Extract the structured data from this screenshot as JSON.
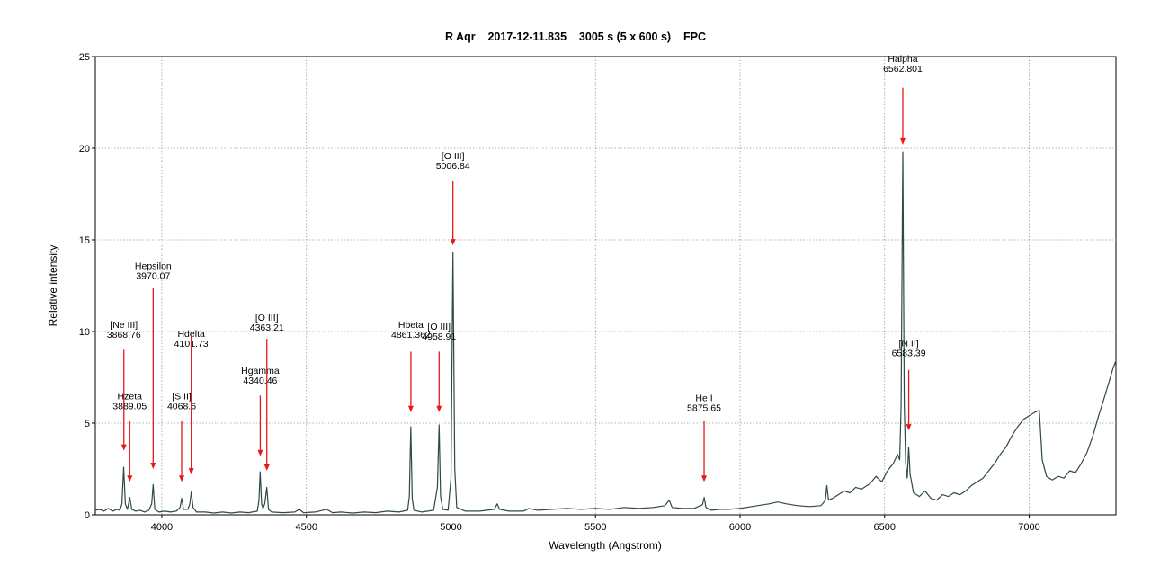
{
  "chart_data": {
    "type": "line",
    "title": "R Aqr    2017-12-11.835    3005 s (5 x 600 s)    FPC",
    "xlabel": "Wavelength (Angstrom)",
    "ylabel": "Relative intensity",
    "xlim": [
      3770,
      7300
    ],
    "ylim": [
      0,
      25
    ],
    "x_ticks": [
      4000,
      4500,
      5000,
      5500,
      6000,
      6500,
      7000
    ],
    "y_ticks": [
      0,
      5,
      10,
      15,
      20,
      25
    ],
    "grid": true,
    "line_color": "#2e4a44",
    "annotation_color": "#e81818",
    "series": [
      {
        "points": [
          [
            3770,
            0.25
          ],
          [
            3785,
            0.3
          ],
          [
            3800,
            0.2
          ],
          [
            3815,
            0.35
          ],
          [
            3830,
            0.2
          ],
          [
            3845,
            0.3
          ],
          [
            3855,
            0.25
          ],
          [
            3862,
            0.6
          ],
          [
            3868,
            2.6
          ],
          [
            3874,
            0.6
          ],
          [
            3881,
            0.3
          ],
          [
            3889,
            0.95
          ],
          [
            3896,
            0.3
          ],
          [
            3910,
            0.2
          ],
          [
            3925,
            0.25
          ],
          [
            3940,
            0.15
          ],
          [
            3955,
            0.25
          ],
          [
            3965,
            0.6
          ],
          [
            3970,
            1.65
          ],
          [
            3976,
            0.3
          ],
          [
            3990,
            0.15
          ],
          [
            4010,
            0.2
          ],
          [
            4030,
            0.15
          ],
          [
            4050,
            0.2
          ],
          [
            4063,
            0.4
          ],
          [
            4069,
            0.9
          ],
          [
            4075,
            0.3
          ],
          [
            4090,
            0.3
          ],
          [
            4097,
            0.6
          ],
          [
            4102,
            1.25
          ],
          [
            4108,
            0.4
          ],
          [
            4120,
            0.15
          ],
          [
            4150,
            0.15
          ],
          [
            4180,
            0.1
          ],
          [
            4210,
            0.15
          ],
          [
            4240,
            0.1
          ],
          [
            4270,
            0.15
          ],
          [
            4300,
            0.12
          ],
          [
            4330,
            0.2
          ],
          [
            4336,
            0.8
          ],
          [
            4340,
            2.35
          ],
          [
            4345,
            0.6
          ],
          [
            4350,
            0.35
          ],
          [
            4356,
            0.6
          ],
          [
            4363,
            1.5
          ],
          [
            4369,
            0.3
          ],
          [
            4380,
            0.15
          ],
          [
            4420,
            0.12
          ],
          [
            4460,
            0.15
          ],
          [
            4475,
            0.3
          ],
          [
            4490,
            0.12
          ],
          [
            4530,
            0.15
          ],
          [
            4570,
            0.3
          ],
          [
            4590,
            0.12
          ],
          [
            4620,
            0.15
          ],
          [
            4660,
            0.1
          ],
          [
            4700,
            0.15
          ],
          [
            4740,
            0.12
          ],
          [
            4780,
            0.2
          ],
          [
            4820,
            0.15
          ],
          [
            4850,
            0.25
          ],
          [
            4856,
            1.0
          ],
          [
            4861,
            4.8
          ],
          [
            4866,
            0.9
          ],
          [
            4872,
            0.25
          ],
          [
            4900,
            0.15
          ],
          [
            4940,
            0.25
          ],
          [
            4953,
            1.5
          ],
          [
            4959,
            4.9
          ],
          [
            4964,
            1.0
          ],
          [
            4972,
            0.3
          ],
          [
            4990,
            0.25
          ],
          [
            5000,
            2.0
          ],
          [
            5007,
            14.3
          ],
          [
            5013,
            2.5
          ],
          [
            5020,
            0.4
          ],
          [
            5050,
            0.2
          ],
          [
            5100,
            0.2
          ],
          [
            5150,
            0.3
          ],
          [
            5160,
            0.6
          ],
          [
            5168,
            0.3
          ],
          [
            5200,
            0.2
          ],
          [
            5250,
            0.2
          ],
          [
            5270,
            0.35
          ],
          [
            5300,
            0.25
          ],
          [
            5350,
            0.3
          ],
          [
            5400,
            0.35
          ],
          [
            5450,
            0.3
          ],
          [
            5500,
            0.35
          ],
          [
            5550,
            0.3
          ],
          [
            5600,
            0.4
          ],
          [
            5650,
            0.35
          ],
          [
            5700,
            0.4
          ],
          [
            5740,
            0.5
          ],
          [
            5755,
            0.8
          ],
          [
            5765,
            0.4
          ],
          [
            5800,
            0.35
          ],
          [
            5840,
            0.35
          ],
          [
            5870,
            0.55
          ],
          [
            5876,
            0.95
          ],
          [
            5882,
            0.4
          ],
          [
            5900,
            0.25
          ],
          [
            5930,
            0.3
          ],
          [
            5960,
            0.3
          ],
          [
            6000,
            0.35
          ],
          [
            6040,
            0.45
          ],
          [
            6080,
            0.55
          ],
          [
            6100,
            0.6
          ],
          [
            6130,
            0.7
          ],
          [
            6160,
            0.6
          ],
          [
            6200,
            0.5
          ],
          [
            6240,
            0.45
          ],
          [
            6280,
            0.5
          ],
          [
            6295,
            0.8
          ],
          [
            6300,
            1.6
          ],
          [
            6306,
            0.8
          ],
          [
            6320,
            0.9
          ],
          [
            6340,
            1.1
          ],
          [
            6360,
            1.3
          ],
          [
            6380,
            1.2
          ],
          [
            6400,
            1.5
          ],
          [
            6420,
            1.4
          ],
          [
            6450,
            1.7
          ],
          [
            6470,
            2.1
          ],
          [
            6490,
            1.8
          ],
          [
            6510,
            2.4
          ],
          [
            6530,
            2.8
          ],
          [
            6545,
            3.3
          ],
          [
            6552,
            3.0
          ],
          [
            6557,
            6.0
          ],
          [
            6563,
            19.8
          ],
          [
            6568,
            6.0
          ],
          [
            6573,
            2.8
          ],
          [
            6578,
            2.0
          ],
          [
            6583,
            3.7
          ],
          [
            6588,
            2.2
          ],
          [
            6600,
            1.2
          ],
          [
            6620,
            1.0
          ],
          [
            6640,
            1.3
          ],
          [
            6660,
            0.9
          ],
          [
            6680,
            0.8
          ],
          [
            6700,
            1.1
          ],
          [
            6720,
            1.0
          ],
          [
            6740,
            1.2
          ],
          [
            6760,
            1.1
          ],
          [
            6780,
            1.3
          ],
          [
            6800,
            1.6
          ],
          [
            6820,
            1.8
          ],
          [
            6840,
            2.0
          ],
          [
            6860,
            2.4
          ],
          [
            6880,
            2.8
          ],
          [
            6900,
            3.3
          ],
          [
            6920,
            3.7
          ],
          [
            6940,
            4.3
          ],
          [
            6960,
            4.8
          ],
          [
            6980,
            5.2
          ],
          [
            7000,
            5.4
          ],
          [
            7020,
            5.6
          ],
          [
            7035,
            5.7
          ],
          [
            7045,
            3.0
          ],
          [
            7060,
            2.1
          ],
          [
            7080,
            1.9
          ],
          [
            7100,
            2.1
          ],
          [
            7120,
            2.0
          ],
          [
            7140,
            2.4
          ],
          [
            7160,
            2.3
          ],
          [
            7180,
            2.8
          ],
          [
            7200,
            3.4
          ],
          [
            7220,
            4.3
          ],
          [
            7240,
            5.4
          ],
          [
            7260,
            6.4
          ],
          [
            7275,
            7.2
          ],
          [
            7290,
            8.0
          ],
          [
            7300,
            8.4
          ]
        ]
      }
    ],
    "annotations": [
      {
        "name": "[Ne III]",
        "value": "3868.76",
        "x": 3868.76,
        "label_y": 10.2,
        "arrow_from": 9.0,
        "arrow_to": 3.5
      },
      {
        "name": "Hzeta",
        "value": "3889.05",
        "x": 3889.05,
        "label_y": 6.3,
        "arrow_from": 5.1,
        "arrow_to": 1.8
      },
      {
        "name": "Hepsilon",
        "value": "3970.07",
        "x": 3970.07,
        "label_y": 13.4,
        "arrow_from": 12.4,
        "arrow_to": 2.5
      },
      {
        "name": "[S II]",
        "value": "4068.6",
        "x": 4068.6,
        "label_y": 6.3,
        "arrow_from": 5.1,
        "arrow_to": 1.8
      },
      {
        "name": "Hdelta",
        "value": "4101.73",
        "x": 4101.73,
        "label_y": 9.7,
        "arrow_from": 9.8,
        "arrow_to": 2.2
      },
      {
        "name": "Hgamma",
        "value": "4340.46",
        "x": 4340.46,
        "label_y": 7.7,
        "arrow_from": 6.5,
        "arrow_to": 3.2
      },
      {
        "name": "[O III]",
        "value": "4363.21",
        "x": 4363.21,
        "label_y": 10.6,
        "arrow_from": 9.6,
        "arrow_to": 2.4
      },
      {
        "name": "Hbeta",
        "value": "4861.362",
        "x": 4861.362,
        "label_y": 10.2,
        "arrow_from": 8.9,
        "arrow_to": 5.6
      },
      {
        "name": "[O III]",
        "value": "4958.91",
        "x": 4958.91,
        "label_y": 10.1,
        "arrow_from": 8.9,
        "arrow_to": 5.6
      },
      {
        "name": "[O III]",
        "value": "5006.84",
        "x": 5006.84,
        "label_y": 19.4,
        "arrow_from": 18.2,
        "arrow_to": 14.7
      },
      {
        "name": "He I",
        "value": "5875.65",
        "x": 5875.65,
        "label_y": 6.2,
        "arrow_from": 5.1,
        "arrow_to": 1.8
      },
      {
        "name": "Halpha",
        "value": "6562.801",
        "x": 6562.801,
        "label_y": 24.7,
        "arrow_from": 23.3,
        "arrow_to": 20.2
      },
      {
        "name": "[N II]",
        "value": "6583.39",
        "x": 6583.39,
        "label_y": 9.2,
        "arrow_from": 7.9,
        "arrow_to": 4.6
      }
    ]
  }
}
